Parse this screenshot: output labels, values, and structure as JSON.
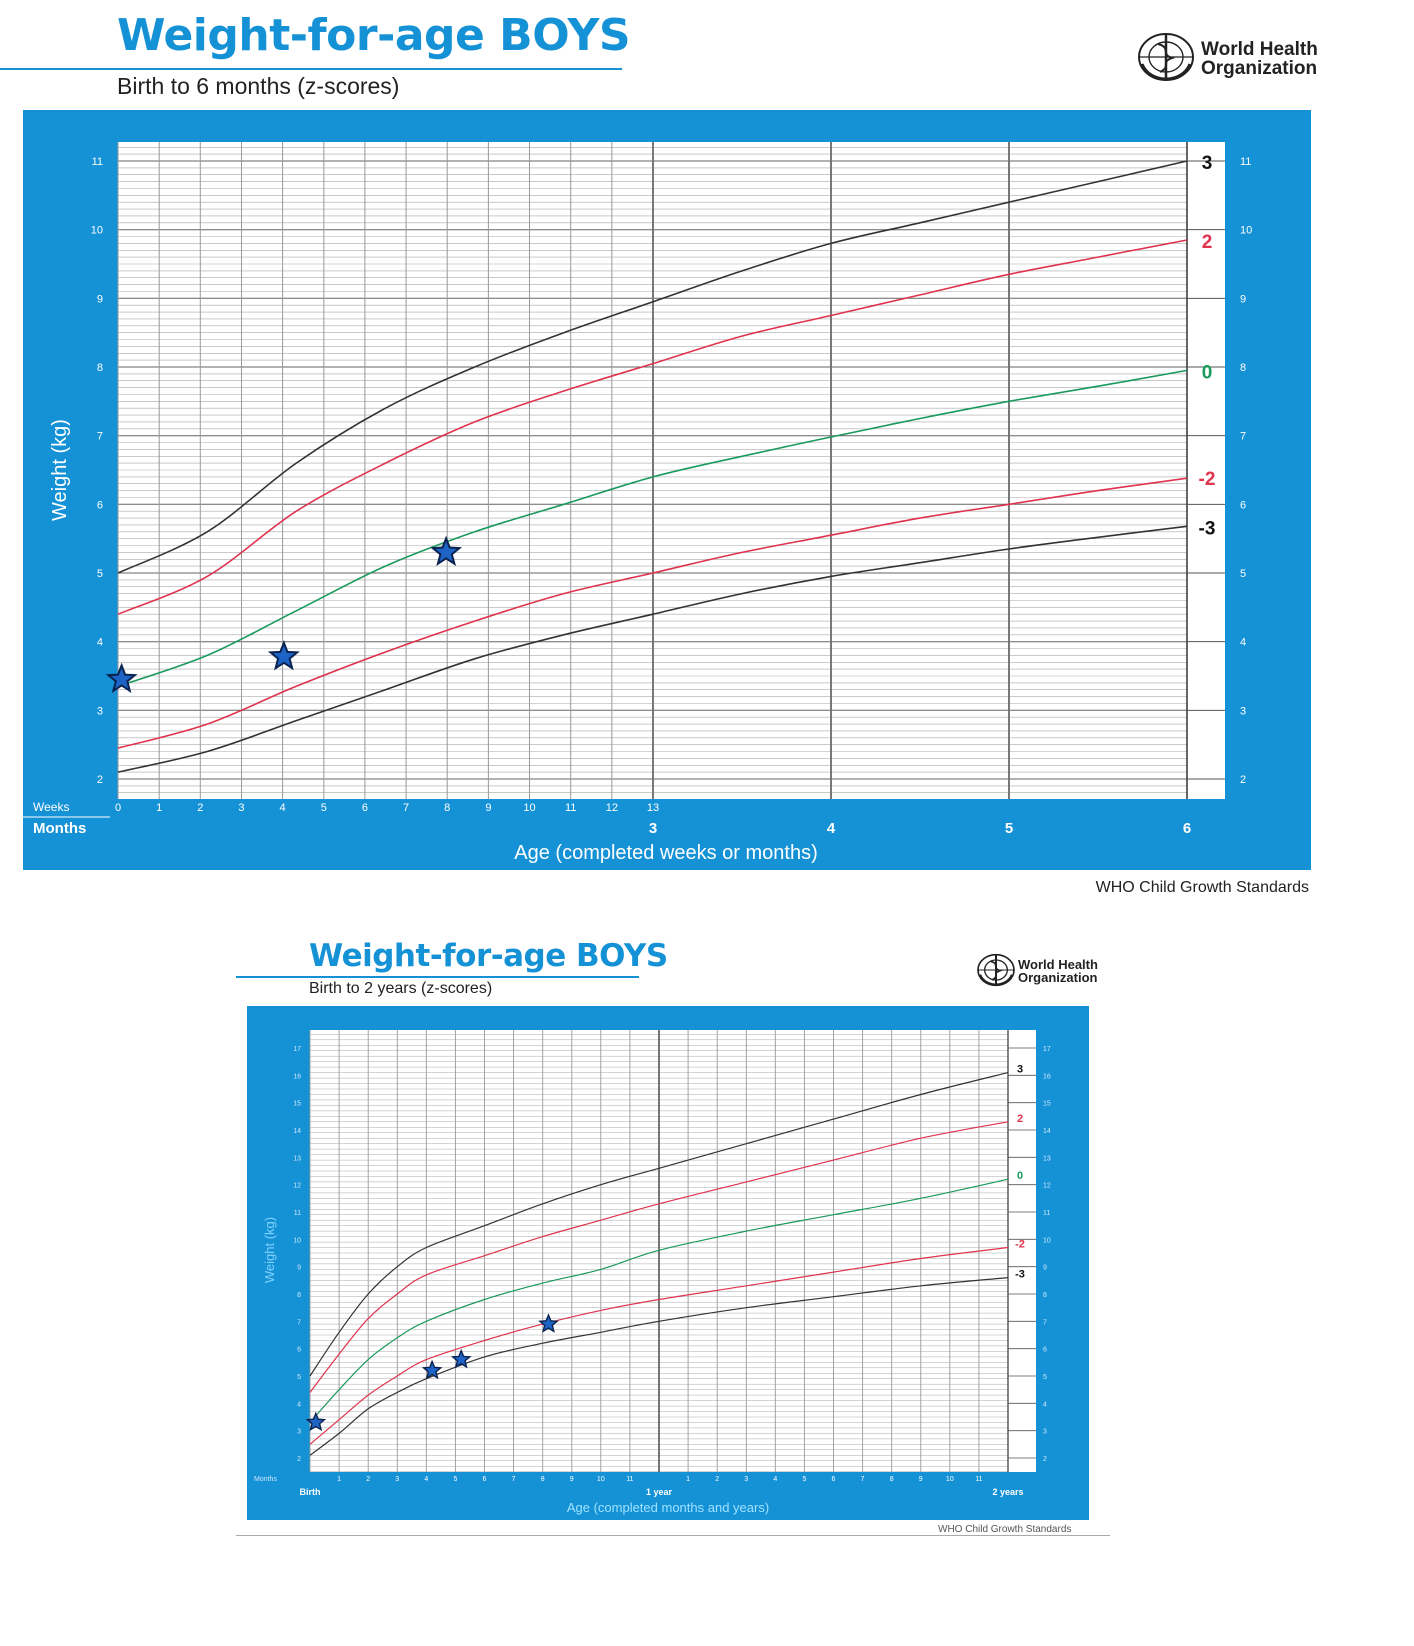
{
  "header1": {
    "title": "Weight-for-age BOYS",
    "subtitle": "Birth to 6 months (z-scores)",
    "org_line1": "World Health",
    "org_line2": "Organization",
    "credit": "WHO Child Growth Standards"
  },
  "header2": {
    "title": "Weight-for-age BOYS",
    "subtitle": "Birth to 2 years (z-scores)",
    "org_line1": "World Health",
    "org_line2": "Organization",
    "credit": "WHO Child Growth Standards"
  },
  "colors": {
    "panel": "#1591d6",
    "grid": "#a9a9a9",
    "z3": "#333333",
    "z2": "#e0334e",
    "z0": "#1a9a5c",
    "star_fill": "#1e63c6",
    "star_stroke": "#0b2350"
  },
  "chart_data": [
    {
      "type": "line",
      "title": "Weight-for-age BOYS",
      "subtitle": "Birth to 6 months (z-scores)",
      "xlabel": "Age (completed weeks or months)",
      "ylabel": "Weight (kg)",
      "xlim": [
        0,
        6
      ],
      "ylim": [
        2,
        11
      ],
      "x_row1_label": "Weeks",
      "x_row2_label": "Months",
      "week_ticks": [
        "0",
        "1",
        "2",
        "3",
        "4",
        "5",
        "6",
        "7",
        "8",
        "9",
        "10",
        "11",
        "12",
        "13"
      ],
      "month_ticks": [
        "3",
        "4",
        "5",
        "6"
      ],
      "y_ticks": [
        "2",
        "3",
        "4",
        "5",
        "6",
        "7",
        "8",
        "9",
        "10",
        "11"
      ],
      "series": [
        {
          "name": "3",
          "label": "3",
          "color_key": "z3",
          "x": [
            0,
            0.5,
            1,
            1.5,
            2,
            2.5,
            3,
            3.5,
            4,
            4.5,
            5,
            5.5,
            6
          ],
          "y": [
            5.0,
            5.6,
            6.6,
            7.4,
            8.0,
            8.5,
            8.95,
            9.4,
            9.8,
            10.1,
            10.4,
            10.7,
            11.0
          ]
        },
        {
          "name": "2",
          "label": "2",
          "color_key": "z2",
          "x": [
            0,
            0.5,
            1,
            1.5,
            2,
            2.5,
            3,
            3.5,
            4,
            4.5,
            5,
            5.5,
            6
          ],
          "y": [
            4.4,
            4.95,
            5.9,
            6.6,
            7.2,
            7.65,
            8.05,
            8.45,
            8.75,
            9.05,
            9.35,
            9.6,
            9.85
          ]
        },
        {
          "name": "0",
          "label": "0",
          "color_key": "z0",
          "x": [
            0,
            0.5,
            1,
            1.5,
            2,
            2.5,
            3,
            3.5,
            4,
            4.5,
            5,
            5.5,
            6
          ],
          "y": [
            3.35,
            3.8,
            4.45,
            5.1,
            5.6,
            6.0,
            6.4,
            6.7,
            6.98,
            7.25,
            7.5,
            7.72,
            7.95
          ]
        },
        {
          "name": "-2",
          "label": "-2",
          "color_key": "z2",
          "x": [
            0,
            0.5,
            1,
            1.5,
            2,
            2.5,
            3,
            3.5,
            4,
            4.5,
            5,
            5.5,
            6
          ],
          "y": [
            2.45,
            2.8,
            3.35,
            3.85,
            4.3,
            4.7,
            5.0,
            5.3,
            5.55,
            5.8,
            6.0,
            6.2,
            6.38
          ]
        },
        {
          "name": "-3",
          "label": "-3",
          "color_key": "z3",
          "x": [
            0,
            0.5,
            1,
            1.5,
            2,
            2.5,
            3,
            3.5,
            4,
            4.5,
            5,
            5.5,
            6
          ],
          "y": [
            2.1,
            2.4,
            2.85,
            3.3,
            3.75,
            4.1,
            4.4,
            4.7,
            4.95,
            5.15,
            5.35,
            5.52,
            5.68
          ]
        }
      ],
      "markers": [
        {
          "x": 0.02,
          "y": 3.45
        },
        {
          "x": 0.93,
          "y": 3.78
        },
        {
          "x": 1.84,
          "y": 5.3
        }
      ]
    },
    {
      "type": "line",
      "title": "Weight-for-age BOYS",
      "subtitle": "Birth to 2 years (z-scores)",
      "xlabel": "Age (completed months and years)",
      "ylabel": "Weight (kg)",
      "xlim": [
        0,
        24
      ],
      "ylim": [
        2,
        17
      ],
      "x_row_label": "Months",
      "x_ticks": [
        {
          "x": 0,
          "label": "Birth",
          "bold": true
        },
        {
          "x": 1,
          "label": "1"
        },
        {
          "x": 2,
          "label": "2"
        },
        {
          "x": 3,
          "label": "3"
        },
        {
          "x": 4,
          "label": "4"
        },
        {
          "x": 5,
          "label": "5"
        },
        {
          "x": 6,
          "label": "6"
        },
        {
          "x": 7,
          "label": "7"
        },
        {
          "x": 8,
          "label": "8"
        },
        {
          "x": 9,
          "label": "9"
        },
        {
          "x": 10,
          "label": "10"
        },
        {
          "x": 11,
          "label": "11"
        },
        {
          "x": 12,
          "label": "1 year",
          "bold": true
        },
        {
          "x": 13,
          "label": "1"
        },
        {
          "x": 14,
          "label": "2"
        },
        {
          "x": 15,
          "label": "3"
        },
        {
          "x": 16,
          "label": "4"
        },
        {
          "x": 17,
          "label": "5"
        },
        {
          "x": 18,
          "label": "6"
        },
        {
          "x": 19,
          "label": "7"
        },
        {
          "x": 20,
          "label": "8"
        },
        {
          "x": 21,
          "label": "9"
        },
        {
          "x": 22,
          "label": "10"
        },
        {
          "x": 23,
          "label": "11"
        },
        {
          "x": 24,
          "label": "2 years",
          "bold": true
        }
      ],
      "y_ticks": [
        "2",
        "3",
        "4",
        "5",
        "6",
        "7",
        "8",
        "9",
        "10",
        "11",
        "12",
        "13",
        "14",
        "15",
        "16",
        "17"
      ],
      "series": [
        {
          "name": "3",
          "label": "3",
          "color_key": "z3",
          "x": [
            0,
            1,
            2,
            3,
            4,
            6,
            8,
            10,
            12,
            15,
            18,
            21,
            24
          ],
          "y": [
            5.0,
            6.6,
            8.0,
            9.0,
            9.7,
            10.5,
            11.3,
            12.0,
            12.6,
            13.5,
            14.4,
            15.3,
            16.1
          ]
        },
        {
          "name": "2",
          "label": "2",
          "color_key": "z2",
          "x": [
            0,
            1,
            2,
            3,
            4,
            6,
            8,
            10,
            12,
            15,
            18,
            21,
            24
          ],
          "y": [
            4.4,
            5.8,
            7.1,
            8.0,
            8.7,
            9.4,
            10.1,
            10.7,
            11.3,
            12.1,
            12.9,
            13.7,
            14.3
          ]
        },
        {
          "name": "0",
          "label": "0",
          "color_key": "z0",
          "x": [
            0,
            1,
            2,
            3,
            4,
            6,
            8,
            10,
            12,
            15,
            18,
            21,
            24
          ],
          "y": [
            3.3,
            4.5,
            5.6,
            6.4,
            7.0,
            7.8,
            8.4,
            8.9,
            9.6,
            10.3,
            10.9,
            11.5,
            12.2
          ]
        },
        {
          "name": "-2",
          "label": "-2",
          "color_key": "z2",
          "x": [
            0,
            1,
            2,
            3,
            4,
            6,
            8,
            10,
            12,
            15,
            18,
            21,
            24
          ],
          "y": [
            2.5,
            3.4,
            4.3,
            5.0,
            5.6,
            6.3,
            6.9,
            7.4,
            7.8,
            8.3,
            8.8,
            9.3,
            9.7
          ]
        },
        {
          "name": "-3",
          "label": "-3",
          "color_key": "z3",
          "x": [
            0,
            1,
            2,
            3,
            4,
            6,
            8,
            10,
            12,
            15,
            18,
            21,
            24
          ],
          "y": [
            2.1,
            2.9,
            3.8,
            4.4,
            4.9,
            5.7,
            6.2,
            6.6,
            7.0,
            7.5,
            7.9,
            8.3,
            8.6
          ]
        }
      ],
      "markers": [
        {
          "x": 0.2,
          "y": 3.3
        },
        {
          "x": 4.2,
          "y": 5.2
        },
        {
          "x": 5.2,
          "y": 5.6
        },
        {
          "x": 8.2,
          "y": 6.9
        }
      ]
    }
  ]
}
